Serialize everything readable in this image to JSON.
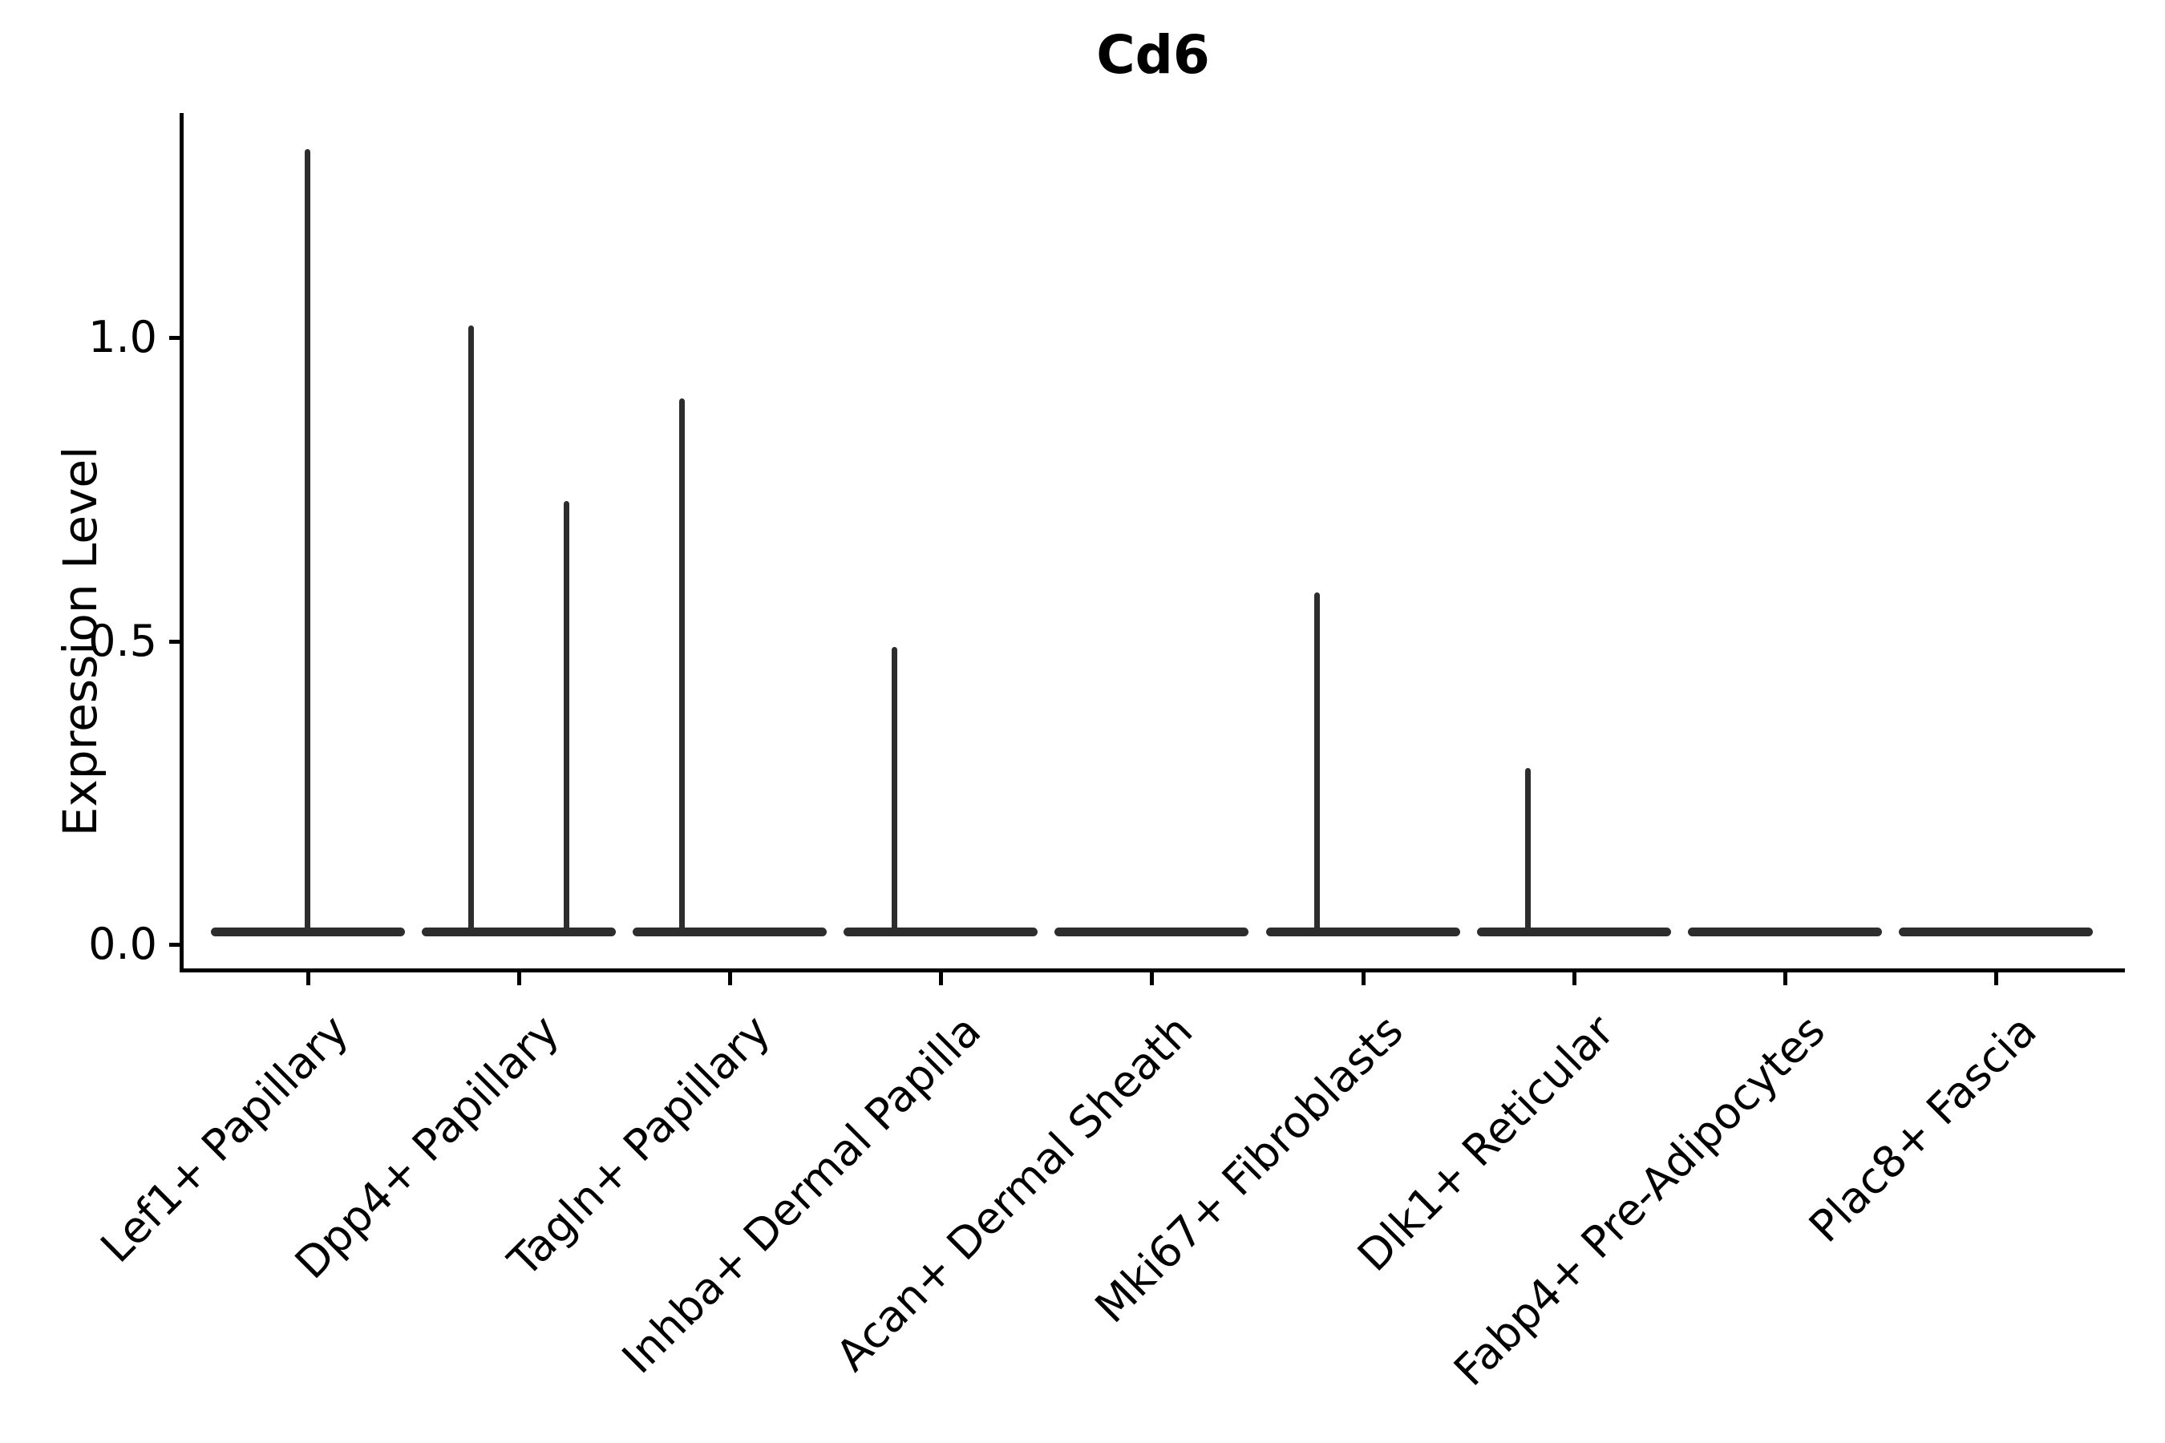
{
  "title": "Cd6",
  "y_axis": {
    "label": "Expression Level",
    "ticks": [
      {
        "label": "0.0",
        "value": 0.0
      },
      {
        "label": "0.5",
        "value": 0.5
      },
      {
        "label": "1.0",
        "value": 1.0
      }
    ]
  },
  "x_axis": {
    "categories": [
      "Lef1+ Papillary",
      "Dpp4+ Papillary",
      "Tagln+ Papillary",
      "Inhba+ Dermal Papilla",
      "Acan+ Dermal Sheath",
      "Mki67+ Fibroblasts",
      "Dlk1+ Reticular",
      "Fabp4+ Pre-Adipocytes",
      "Plac8+ Fascia"
    ]
  },
  "chart_data": {
    "type": "violin",
    "title": "Cd6",
    "xlabel": "",
    "ylabel": "Expression Level",
    "ylim": [
      -0.05,
      1.37
    ],
    "yticks": [
      0.0,
      0.5,
      1.0
    ],
    "grid": false,
    "legend": "none",
    "line_color": "#2d2d2d",
    "axis_color": "#000000",
    "background": "#ffffff",
    "categories": [
      "Lef1+ Papillary",
      "Dpp4+ Papillary",
      "Tagln+ Papillary",
      "Inhba+ Dermal Papilla",
      "Acan+ Dermal Sheath",
      "Mki67+ Fibroblasts",
      "Dlk1+ Reticular",
      "Fabp4+ Pre-Adipocytes",
      "Plac8+ Fascia"
    ],
    "violins": [
      {
        "category": "Lef1+ Papillary",
        "spikes": [
          {
            "x_offset_frac": 0.0,
            "max": 1.31
          }
        ]
      },
      {
        "category": "Dpp4+ Papillary",
        "spikes": [
          {
            "x_offset_frac": -0.224,
            "max": 1.02
          },
          {
            "x_offset_frac": 0.228,
            "max": 0.73
          }
        ]
      },
      {
        "category": "Tagln+ Papillary",
        "spikes": [
          {
            "x_offset_frac": -0.224,
            "max": 0.9
          }
        ]
      },
      {
        "category": "Inhba+ Dermal Papilla",
        "spikes": [
          {
            "x_offset_frac": -0.22,
            "max": 0.49
          }
        ]
      },
      {
        "category": "Acan+ Dermal Sheath",
        "spikes": []
      },
      {
        "category": "Mki67+ Fibroblasts",
        "spikes": [
          {
            "x_offset_frac": -0.217,
            "max": 0.58
          }
        ]
      },
      {
        "category": "Dlk1+ Reticular",
        "spikes": [
          {
            "x_offset_frac": -0.217,
            "max": 0.29
          }
        ]
      },
      {
        "category": "Fabp4+ Pre-Adipocytes",
        "spikes": []
      },
      {
        "category": "Plac8+ Fascia",
        "spikes": []
      }
    ],
    "body_note": "every category shows a flat collapsed violin body at expression ~0; thin spikes rise to the max expressing cells"
  }
}
